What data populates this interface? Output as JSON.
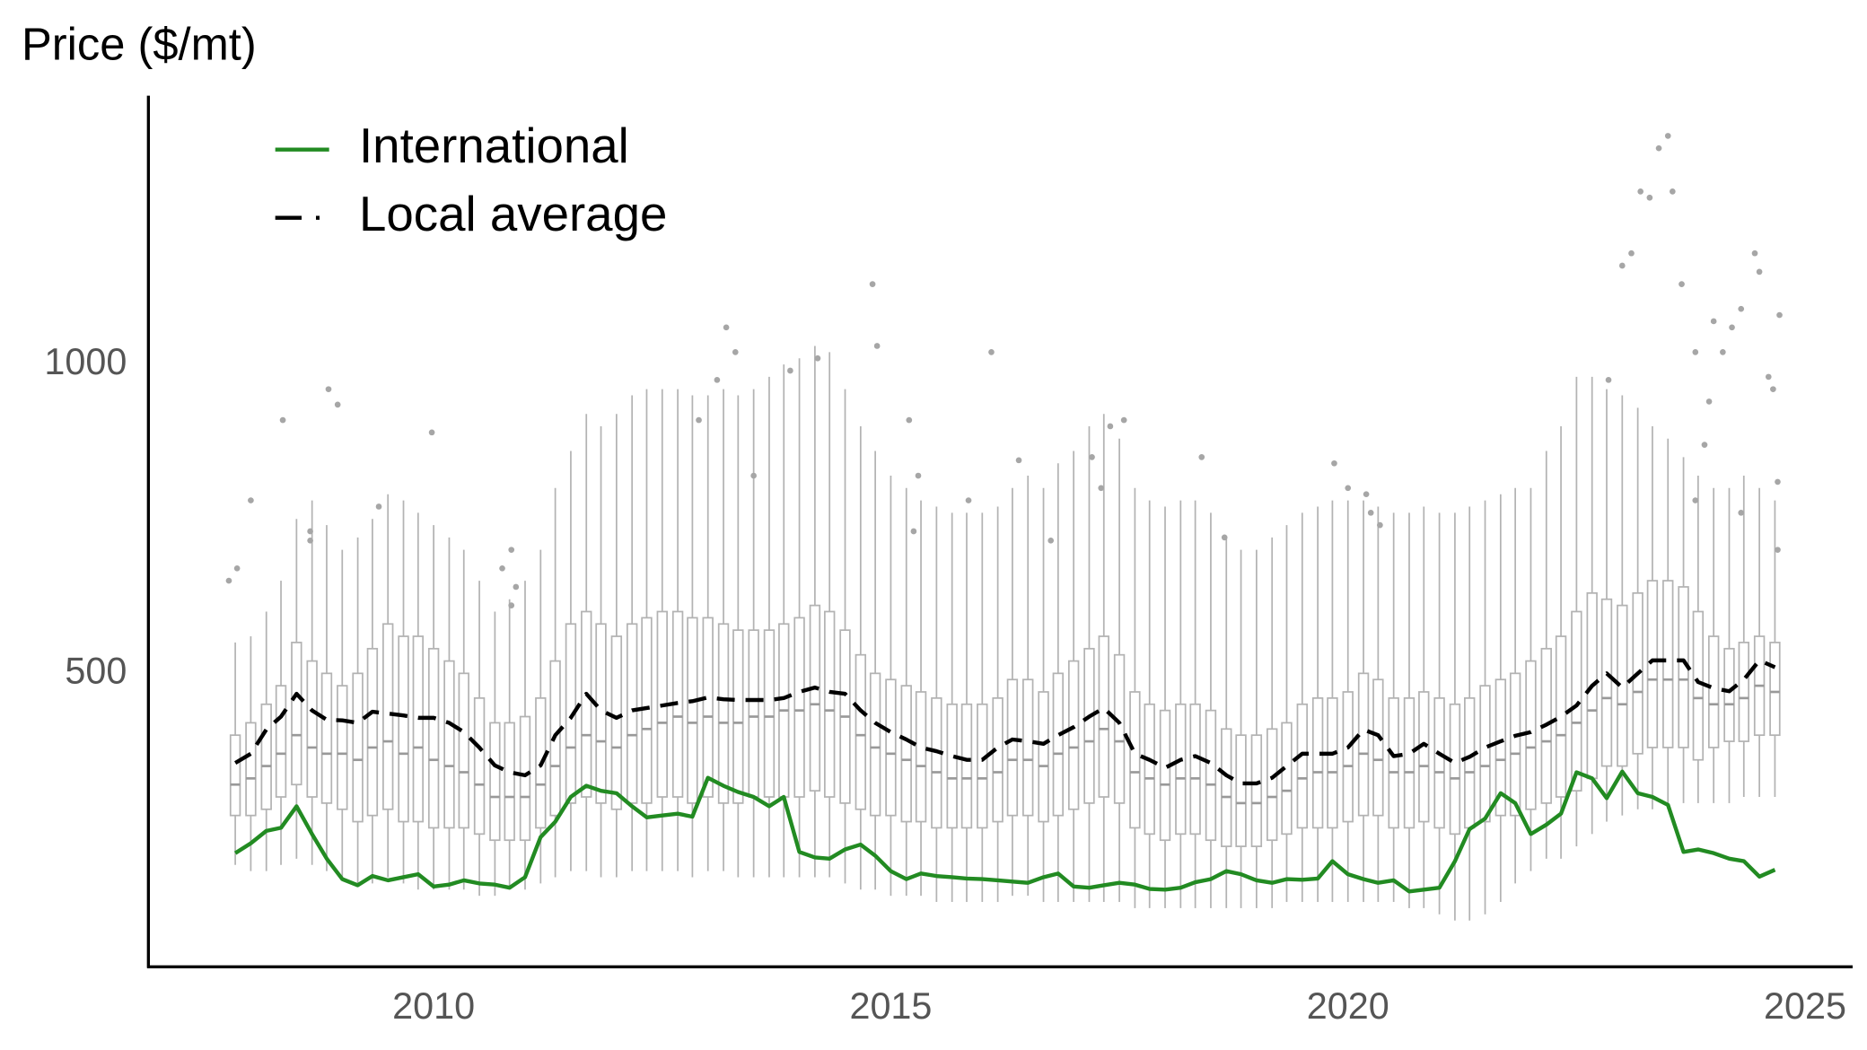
{
  "chart_data": {
    "type": "box",
    "title": "Price ($/mt)",
    "legend": "upper left",
    "xlim": [
      2006.88,
      2025.52
    ],
    "xticks": [
      2010,
      2015,
      2020,
      2025
    ],
    "ylim": [
      25,
      1435
    ],
    "yticks": [
      500,
      1000
    ],
    "x": [
      2007.83,
      2008,
      2008.17,
      2008.33,
      2008.5,
      2008.67,
      2008.83,
      2009,
      2009.17,
      2009.33,
      2009.5,
      2009.67,
      2009.83,
      2010,
      2010.17,
      2010.33,
      2010.5,
      2010.67,
      2010.83,
      2011,
      2011.17,
      2011.33,
      2011.5,
      2011.67,
      2011.83,
      2012,
      2012.17,
      2012.33,
      2012.5,
      2012.67,
      2012.83,
      2013,
      2013.17,
      2013.33,
      2013.5,
      2013.67,
      2013.83,
      2014,
      2014.17,
      2014.33,
      2014.5,
      2014.67,
      2014.83,
      2015,
      2015.17,
      2015.33,
      2015.5,
      2015.67,
      2015.83,
      2016,
      2016.17,
      2016.33,
      2016.5,
      2016.67,
      2016.83,
      2017,
      2017.17,
      2017.33,
      2017.5,
      2017.67,
      2017.83,
      2018,
      2018.17,
      2018.33,
      2018.5,
      2018.67,
      2018.83,
      2019,
      2019.17,
      2019.33,
      2019.5,
      2019.67,
      2019.83,
      2020,
      2020.17,
      2020.33,
      2020.5,
      2020.67,
      2020.83,
      2021,
      2021.17,
      2021.33,
      2021.5,
      2021.67,
      2021.83,
      2022,
      2022.17,
      2022.33,
      2022.5,
      2022.67,
      2022.83,
      2023,
      2023.17,
      2023.33,
      2023.5,
      2023.67,
      2023.83,
      2024,
      2024.17,
      2024.33,
      2024.5,
      2024.67
    ],
    "boxes": {
      "color": "#b3b3b3",
      "median": [
        320,
        330,
        350,
        370,
        400,
        380,
        370,
        370,
        360,
        380,
        390,
        370,
        380,
        360,
        350,
        340,
        320,
        300,
        300,
        300,
        320,
        350,
        380,
        400,
        390,
        380,
        400,
        410,
        420,
        430,
        420,
        430,
        420,
        420,
        430,
        430,
        440,
        440,
        450,
        440,
        430,
        400,
        380,
        370,
        360,
        350,
        340,
        330,
        330,
        330,
        340,
        360,
        360,
        350,
        370,
        380,
        390,
        410,
        390,
        340,
        330,
        320,
        330,
        330,
        320,
        300,
        290,
        290,
        300,
        310,
        330,
        340,
        340,
        350,
        370,
        360,
        340,
        340,
        350,
        340,
        330,
        340,
        350,
        360,
        370,
        380,
        390,
        400,
        420,
        440,
        460,
        450,
        470,
        490,
        490,
        490,
        460,
        450,
        450,
        460,
        480,
        470
      ],
      "q1": [
        270,
        270,
        280,
        300,
        320,
        300,
        290,
        280,
        260,
        270,
        280,
        260,
        260,
        250,
        250,
        250,
        240,
        230,
        230,
        230,
        250,
        270,
        290,
        300,
        290,
        280,
        290,
        290,
        300,
        300,
        290,
        300,
        290,
        290,
        300,
        300,
        300,
        300,
        310,
        300,
        290,
        280,
        270,
        270,
        260,
        260,
        250,
        250,
        250,
        250,
        260,
        270,
        270,
        260,
        270,
        280,
        290,
        300,
        290,
        250,
        240,
        230,
        240,
        240,
        230,
        220,
        220,
        220,
        230,
        240,
        250,
        250,
        250,
        260,
        270,
        270,
        250,
        250,
        260,
        250,
        240,
        250,
        260,
        270,
        270,
        280,
        290,
        300,
        310,
        330,
        350,
        350,
        370,
        380,
        380,
        380,
        360,
        380,
        390,
        390,
        400,
        400
      ],
      "q3": [
        400,
        420,
        450,
        480,
        550,
        520,
        500,
        480,
        500,
        540,
        580,
        560,
        560,
        540,
        520,
        500,
        460,
        420,
        420,
        430,
        460,
        520,
        580,
        600,
        580,
        560,
        580,
        590,
        600,
        600,
        590,
        590,
        580,
        570,
        570,
        570,
        580,
        590,
        610,
        600,
        570,
        530,
        500,
        490,
        480,
        470,
        460,
        450,
        450,
        450,
        460,
        490,
        490,
        470,
        500,
        520,
        540,
        560,
        530,
        470,
        450,
        440,
        450,
        450,
        440,
        410,
        400,
        400,
        410,
        420,
        450,
        460,
        460,
        470,
        500,
        490,
        460,
        460,
        470,
        460,
        450,
        460,
        480,
        490,
        500,
        520,
        540,
        560,
        600,
        630,
        620,
        610,
        630,
        650,
        650,
        640,
        600,
        560,
        540,
        550,
        560,
        550
      ],
      "low": [
        190,
        180,
        180,
        190,
        200,
        190,
        180,
        170,
        160,
        160,
        170,
        160,
        150,
        150,
        150,
        150,
        140,
        140,
        150,
        150,
        160,
        170,
        180,
        180,
        170,
        170,
        180,
        180,
        180,
        180,
        170,
        180,
        180,
        170,
        170,
        170,
        170,
        170,
        170,
        170,
        160,
        150,
        150,
        140,
        140,
        140,
        130,
        130,
        130,
        130,
        130,
        140,
        140,
        130,
        130,
        130,
        130,
        130,
        130,
        120,
        120,
        120,
        120,
        120,
        120,
        120,
        120,
        120,
        120,
        130,
        130,
        130,
        130,
        130,
        130,
        130,
        130,
        120,
        120,
        110,
        100,
        100,
        110,
        130,
        160,
        180,
        200,
        200,
        220,
        240,
        260,
        270,
        280,
        280,
        280,
        290,
        290,
        290,
        290,
        300,
        300,
        300
      ],
      "high": [
        550,
        560,
        600,
        650,
        750,
        780,
        740,
        700,
        720,
        750,
        790,
        780,
        760,
        740,
        720,
        700,
        650,
        600,
        620,
        650,
        700,
        800,
        860,
        920,
        900,
        920,
        950,
        960,
        960,
        960,
        950,
        950,
        960,
        950,
        960,
        980,
        1000,
        1010,
        1030,
        1020,
        960,
        900,
        860,
        820,
        800,
        780,
        770,
        760,
        760,
        760,
        770,
        800,
        820,
        800,
        840,
        860,
        900,
        920,
        880,
        800,
        780,
        770,
        780,
        780,
        760,
        720,
        700,
        700,
        720,
        740,
        760,
        770,
        780,
        780,
        780,
        770,
        760,
        760,
        770,
        760,
        760,
        770,
        780,
        790,
        800,
        800,
        860,
        900,
        980,
        980,
        960,
        950,
        930,
        900,
        880,
        850,
        820,
        800,
        800,
        820,
        800,
        780
      ]
    },
    "outliers": {
      "color": "#a6a6a6",
      "x": [
        2007.76,
        2007.85,
        2008.0,
        2008.35,
        2008.85,
        2008.95,
        2008.65,
        2008.65,
        2009.4,
        2009.98,
        2010.75,
        2010.85,
        2010.9,
        2010.85,
        2012.9,
        2013.1,
        2013.2,
        2013.3,
        2013.5,
        2013.9,
        2014.2,
        2014.8,
        2014.85,
        2015.2,
        2015.25,
        2015.3,
        2015.85,
        2016.1,
        2016.4,
        2016.75,
        2017.2,
        2017.4,
        2017.3,
        2017.55,
        2018.4,
        2018.65,
        2019.85,
        2020.0,
        2020.2,
        2020.25,
        2020.35,
        2022.85,
        2023.0,
        2023.1,
        2023.2,
        2023.3,
        2023.4,
        2023.5,
        2023.55,
        2023.65,
        2023.8,
        2023.9,
        2024.0,
        2024.1,
        2024.2,
        2024.3,
        2024.45,
        2024.5,
        2024.6,
        2024.65,
        2024.7,
        2024.7,
        2024.72,
        2023.95,
        2023.8,
        2024.3
      ],
      "y": [
        650,
        670,
        780,
        910,
        960,
        935,
        730,
        715,
        770,
        890,
        670,
        700,
        640,
        610,
        910,
        975,
        1060,
        1020,
        820,
        990,
        1010,
        1130,
        1030,
        910,
        730,
        820,
        780,
        1020,
        845,
        715,
        850,
        900,
        800,
        910,
        850,
        720,
        840,
        800,
        790,
        760,
        740,
        975,
        1160,
        1180,
        1280,
        1270,
        1350,
        1370,
        1280,
        1130,
        1020,
        870,
        1070,
        1020,
        1060,
        1090,
        1180,
        1150,
        980,
        960,
        810,
        700,
        1080,
        940,
        780,
        760
      ]
    },
    "series": [
      {
        "name": "International",
        "color": "#228b22",
        "line_style": "solid",
        "values": [
          209,
          225,
          245,
          250,
          285,
          240,
          200,
          167,
          157,
          172,
          165,
          170,
          175,
          155,
          158,
          165,
          160,
          158,
          153,
          170,
          235,
          260,
          300,
          318,
          310,
          306,
          285,
          267,
          270,
          273,
          268,
          331,
          318,
          308,
          300,
          285,
          300,
          211,
          202,
          200,
          215,
          223,
          205,
          180,
          167,
          176,
          172,
          170,
          168,
          167,
          165,
          163,
          161,
          170,
          176,
          155,
          153,
          157,
          161,
          158,
          151,
          150,
          153,
          162,
          167,
          180,
          175,
          165,
          161,
          167,
          166,
          168,
          196,
          175,
          167,
          161,
          165,
          147,
          150,
          153,
          196,
          248,
          265,
          306,
          290,
          240,
          255,
          273,
          340,
          330,
          298,
          341,
          306,
          300,
          287,
          211,
          215,
          209,
          200,
          196,
          171,
          182
        ]
      },
      {
        "name": "Local average",
        "color": "#000000",
        "line_style": "dashed",
        "values": [
          355,
          370,
          409,
          430,
          467,
          440,
          425,
          424,
          420,
          438,
          435,
          432,
          428,
          428,
          420,
          405,
          380,
          351,
          340,
          335,
          351,
          400,
          428,
          467,
          440,
          428,
          440,
          444,
          448,
          452,
          455,
          461,
          458,
          457,
          457,
          457,
          460,
          470,
          477,
          470,
          467,
          440,
          420,
          405,
          393,
          380,
          374,
          366,
          360,
          360,
          380,
          393,
          390,
          386,
          400,
          413,
          430,
          444,
          420,
          370,
          360,
          347,
          360,
          366,
          355,
          335,
          322,
          322,
          331,
          350,
          370,
          370,
          370,
          380,
          409,
          400,
          366,
          370,
          386,
          370,
          355,
          365,
          380,
          390,
          399,
          405,
          417,
          430,
          448,
          480,
          500,
          477,
          500,
          521,
          521,
          521,
          486,
          476,
          471,
          490,
          521,
          510
        ]
      }
    ]
  }
}
